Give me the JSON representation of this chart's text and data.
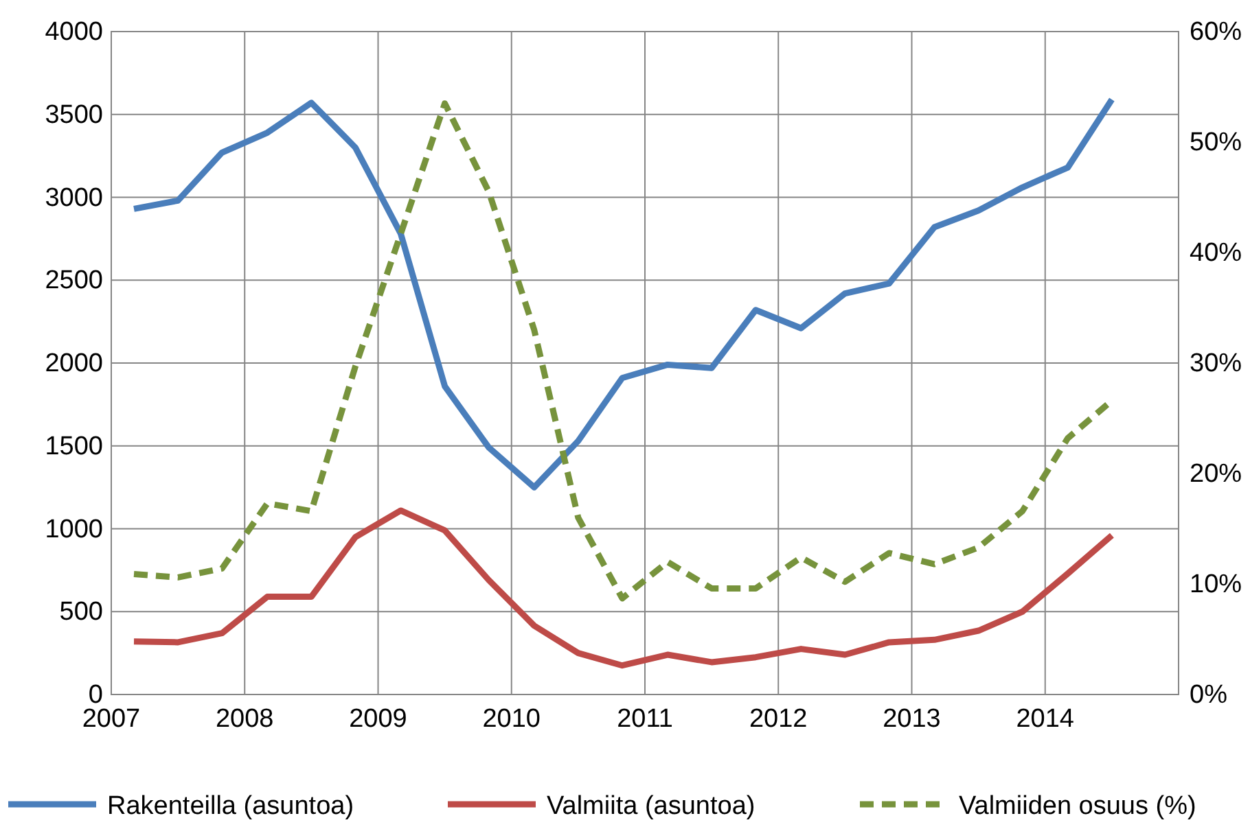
{
  "chart_data": {
    "type": "line",
    "x": [
      2007.17,
      2007.5,
      2007.83,
      2008.17,
      2008.5,
      2008.83,
      2009.17,
      2009.5,
      2009.83,
      2010.17,
      2010.5,
      2010.83,
      2011.17,
      2011.5,
      2011.83,
      2012.17,
      2012.5,
      2012.83,
      2013.17,
      2013.5,
      2013.83,
      2014.17,
      2014.5
    ],
    "xlim": [
      2007,
      2015
    ],
    "xticks": [
      2007,
      2008,
      2009,
      2010,
      2011,
      2012,
      2013,
      2014
    ],
    "ylim": [
      0,
      4000
    ],
    "yticks": [
      0,
      500,
      1000,
      1500,
      2000,
      2500,
      3000,
      3500,
      4000
    ],
    "y2lim": [
      0,
      60
    ],
    "y2ticks": [
      {
        "value": 0,
        "label": "0%"
      },
      {
        "value": 10,
        "label": "10%"
      },
      {
        "value": 20,
        "label": "20%"
      },
      {
        "value": 30,
        "label": "30%"
      },
      {
        "value": 40,
        "label": "40%"
      },
      {
        "value": 50,
        "label": "50%"
      },
      {
        "value": 60,
        "label": "60%"
      }
    ],
    "grid": true,
    "legend": "bottom",
    "marker": "none",
    "series": [
      {
        "name": "Rakenteilla (asuntoa)",
        "color": "#4a7ebb",
        "line_style": "solid",
        "values": [
          2930,
          2980,
          3270,
          3390,
          3570,
          3300,
          2780,
          1860,
          1490,
          1250,
          1530,
          1910,
          1990,
          1970,
          2320,
          2210,
          2420,
          2480,
          2820,
          2920,
          3060,
          3180,
          3590
        ]
      },
      {
        "name": "Valmiita (asuntoa)",
        "color": "#be4b48",
        "line_style": "solid",
        "values": [
          320,
          315,
          370,
          590,
          590,
          950,
          1110,
          990,
          690,
          415,
          250,
          175,
          240,
          195,
          225,
          275,
          240,
          315,
          330,
          385,
          500,
          730,
          960
        ]
      },
      {
        "name": "Valmiiden osuus (%)",
        "color": "#77933c",
        "line_style": "dashed",
        "axis": "y2",
        "values": [
          10.9,
          10.6,
          11.4,
          17.3,
          16.6,
          29.7,
          41.7,
          53.5,
          45.5,
          33.0,
          16.0,
          8.7,
          12.0,
          9.6,
          9.6,
          12.4,
          10.2,
          12.8,
          11.8,
          13.3,
          16.6,
          23.2,
          26.6
        ]
      }
    ]
  }
}
